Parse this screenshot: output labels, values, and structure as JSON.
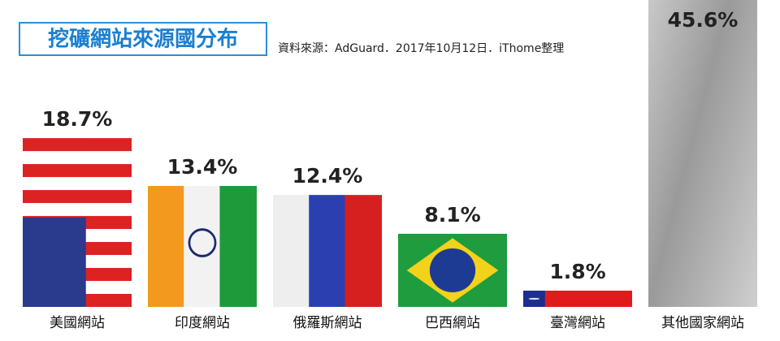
{
  "chart_data": {
    "type": "bar",
    "title": "挖礦網站來源國分布",
    "subtitle": "資料來源：AdGuard．2017年10月12日．iThome整理",
    "categories": [
      "美國網站",
      "印度網站",
      "俄羅斯網站",
      "巴西網站",
      "臺灣網站",
      "其他國家網站"
    ],
    "values": [
      18.7,
      13.4,
      12.4,
      8.1,
      1.8,
      45.6
    ],
    "value_labels": [
      "18.7%",
      "13.4%",
      "12.4%",
      "8.1%",
      "1.8%",
      "45.6%"
    ],
    "ylim": [
      0,
      34
    ]
  }
}
